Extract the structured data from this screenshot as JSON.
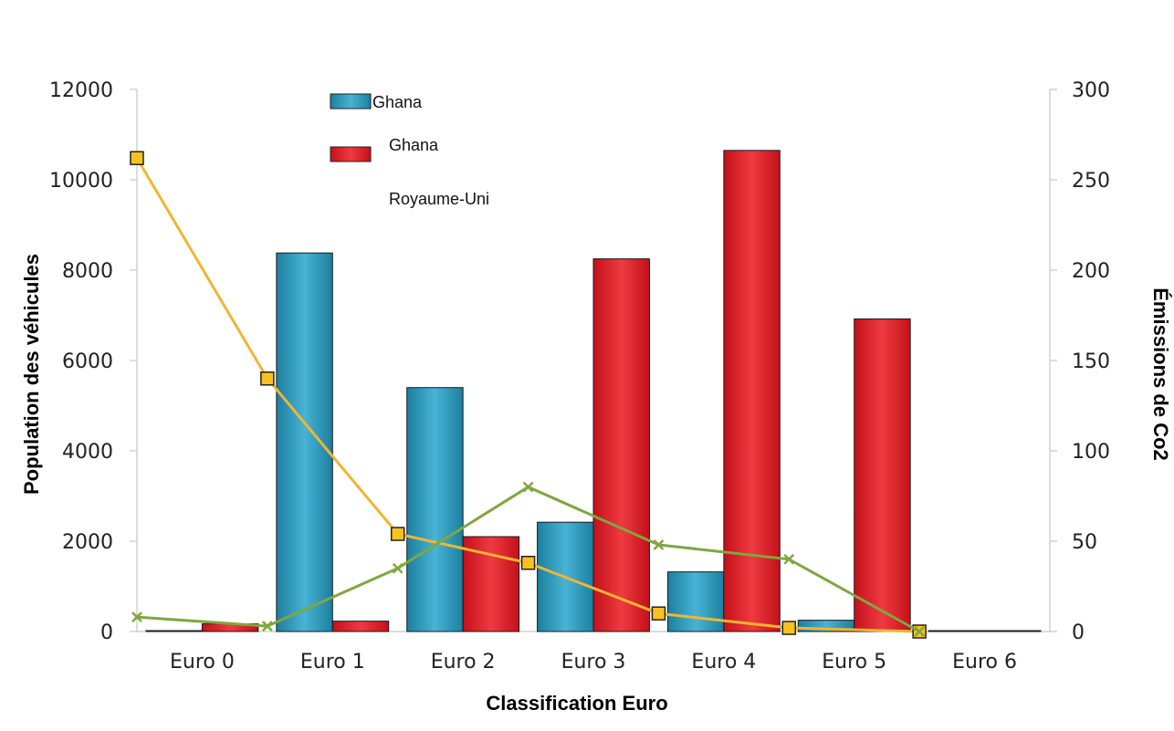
{
  "chart_data": {
    "type": "bar",
    "categories": [
      "Euro 0",
      "Euro 1",
      "Euro 2",
      "Euro 3",
      "Euro 4",
      "Euro 5",
      "Euro 6"
    ],
    "series": [
      {
        "name": "Ghana",
        "kind": "bar",
        "axis": "left",
        "color": "#2a9bbd",
        "values": [
          0,
          8380,
          5400,
          2420,
          1320,
          250,
          20
        ]
      },
      {
        "name": "Ghana",
        "kind": "bar",
        "axis": "left",
        "color": "#d81f26",
        "values": [
          170,
          230,
          2100,
          8250,
          10650,
          6920,
          20
        ]
      },
      {
        "name": "Royaume-Uni",
        "kind": "line",
        "axis": "right",
        "color": "#f2b531",
        "values": [
          262,
          140,
          54,
          38,
          10,
          2,
          0
        ]
      },
      {
        "kind": "line",
        "axis": "right",
        "color": "#7ea83e",
        "values": [
          8,
          3,
          35,
          80,
          48,
          40,
          0
        ]
      }
    ],
    "xlabel": "Classification Euro",
    "ylabel": "Population des véhicules",
    "y2label": "Émissions de Co2",
    "ylim": [
      0,
      12000
    ],
    "y2lim": [
      0,
      300
    ],
    "yticks": [
      "0",
      "2000",
      "4000",
      "6000",
      "8000",
      "10000",
      "12000"
    ],
    "y2ticks": [
      "0",
      "50",
      "100",
      "150",
      "200",
      "250",
      "300"
    ],
    "grid": false,
    "legend": {
      "placement": "top-left",
      "entries": [
        "Ghana",
        "Ghana",
        "Royaume-Uni"
      ]
    }
  }
}
